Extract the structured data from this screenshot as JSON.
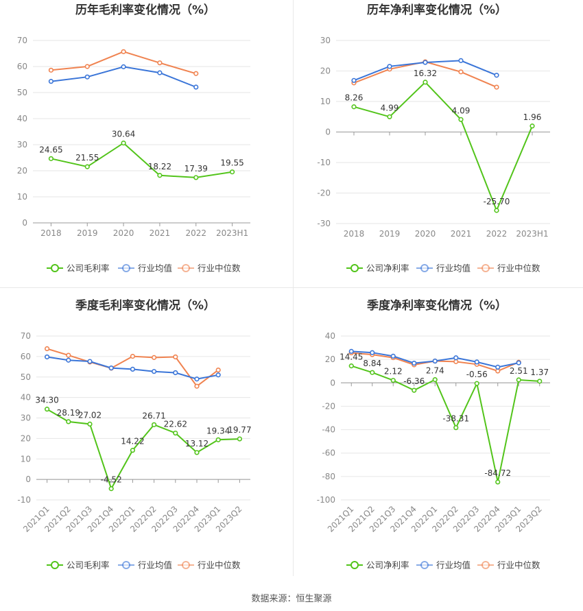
{
  "footer": {
    "source": "数据来源：恒生聚源"
  },
  "chart_data": [
    {
      "type": "line",
      "title": "历年毛利率变化情况（%）",
      "categories": [
        "2018",
        "2019",
        "2020",
        "2021",
        "2022",
        "2023H1"
      ],
      "yticks": [
        "0",
        "10",
        "20",
        "30",
        "40",
        "50",
        "60",
        "70"
      ],
      "ylim": [
        0,
        70
      ],
      "series": [
        {
          "name": "公司毛利率",
          "color": "#52c41a",
          "values": [
            24.65,
            21.55,
            30.64,
            18.22,
            17.39,
            19.55
          ],
          "labels": [
            "24.65",
            "21.55",
            "30.64",
            "18.22",
            "17.39",
            "19.55"
          ]
        },
        {
          "name": "行业均值",
          "color": "#3a75d8",
          "values": [
            54.3,
            56.0,
            59.9,
            57.6,
            52.1,
            null
          ]
        },
        {
          "name": "行业中位数",
          "color": "#f08350",
          "values": [
            58.6,
            60.0,
            65.7,
            61.4,
            57.3,
            null
          ]
        }
      ]
    },
    {
      "type": "line",
      "title": "历年净利率变化情况（%）",
      "categories": [
        "2018",
        "2019",
        "2020",
        "2021",
        "2022",
        "2023H1"
      ],
      "yticks": [
        "-30",
        "-20",
        "-10",
        "0",
        "10",
        "20",
        "30"
      ],
      "ylim": [
        -30,
        30
      ],
      "series": [
        {
          "name": "公司净利率",
          "color": "#52c41a",
          "values": [
            8.26,
            4.99,
            16.32,
            4.09,
            -25.7,
            1.96
          ],
          "labels": [
            "8.26",
            "4.99",
            "16.32",
            "4.09",
            "-25.70",
            "1.96"
          ]
        },
        {
          "name": "行业均值",
          "color": "#3a75d8",
          "values": [
            16.9,
            21.5,
            22.8,
            23.4,
            18.6,
            null
          ]
        },
        {
          "name": "行业中位数",
          "color": "#f08350",
          "values": [
            16.1,
            20.6,
            23.0,
            19.7,
            14.7,
            null
          ]
        }
      ]
    },
    {
      "type": "line",
      "title": "季度毛利率变化情况（%）",
      "categories": [
        "2021Q1",
        "2021Q2",
        "2021Q3",
        "2021Q4",
        "2022Q1",
        "2022Q2",
        "2022Q3",
        "2022Q4",
        "2023Q1",
        "2023Q2"
      ],
      "yticks": [
        "-10",
        "0",
        "10",
        "20",
        "30",
        "40",
        "50",
        "60",
        "70"
      ],
      "ylim": [
        -10,
        70
      ],
      "series": [
        {
          "name": "公司毛利率",
          "color": "#52c41a",
          "values": [
            34.3,
            28.19,
            27.02,
            -4.52,
            14.22,
            26.71,
            22.62,
            13.12,
            19.34,
            19.77
          ],
          "labels": [
            "34.30",
            "28.19",
            "27.02",
            "-4.52",
            "14.22",
            "26.71",
            "22.62",
            "13.12",
            "19.34",
            "19.77"
          ]
        },
        {
          "name": "行业均值",
          "color": "#3a75d8",
          "values": [
            59.8,
            58.2,
            57.6,
            54.4,
            53.8,
            52.7,
            52.1,
            49.0,
            51.0,
            null
          ]
        },
        {
          "name": "行业中位数",
          "color": "#f08350",
          "values": [
            63.8,
            60.6,
            57.3,
            54.3,
            60.1,
            59.5,
            59.8,
            45.5,
            53.4,
            null
          ]
        }
      ]
    },
    {
      "type": "line",
      "title": "季度净利率变化情况（%）",
      "categories": [
        "2021Q1",
        "2021Q2",
        "2021Q3",
        "2021Q4",
        "2022Q1",
        "2022Q2",
        "2022Q3",
        "2022Q4",
        "2023Q1",
        "2023Q2"
      ],
      "yticks": [
        "-100",
        "-80",
        "-60",
        "-40",
        "-20",
        "0",
        "20",
        "40"
      ],
      "ylim": [
        -100,
        40
      ],
      "series": [
        {
          "name": "公司净利率",
          "color": "#52c41a",
          "values": [
            14.45,
            8.84,
            2.12,
            -6.36,
            2.74,
            -38.31,
            -0.56,
            -84.72,
            2.51,
            1.37
          ],
          "labels": [
            "14.45",
            "8.84",
            "2.12",
            "-6.36",
            "2.74",
            "-38.31",
            "-0.56",
            "-84.72",
            "2.51",
            "1.37"
          ]
        },
        {
          "name": "行业均值",
          "color": "#3a75d8",
          "values": [
            26.9,
            25.8,
            22.8,
            16.8,
            18.6,
            21.4,
            17.8,
            13.4,
            17.1,
            null
          ]
        },
        {
          "name": "行业中位数",
          "color": "#f08350",
          "values": [
            25.6,
            24.1,
            21.5,
            15.4,
            18.6,
            18.1,
            15.8,
            10.1,
            17.6,
            null
          ]
        }
      ]
    }
  ]
}
